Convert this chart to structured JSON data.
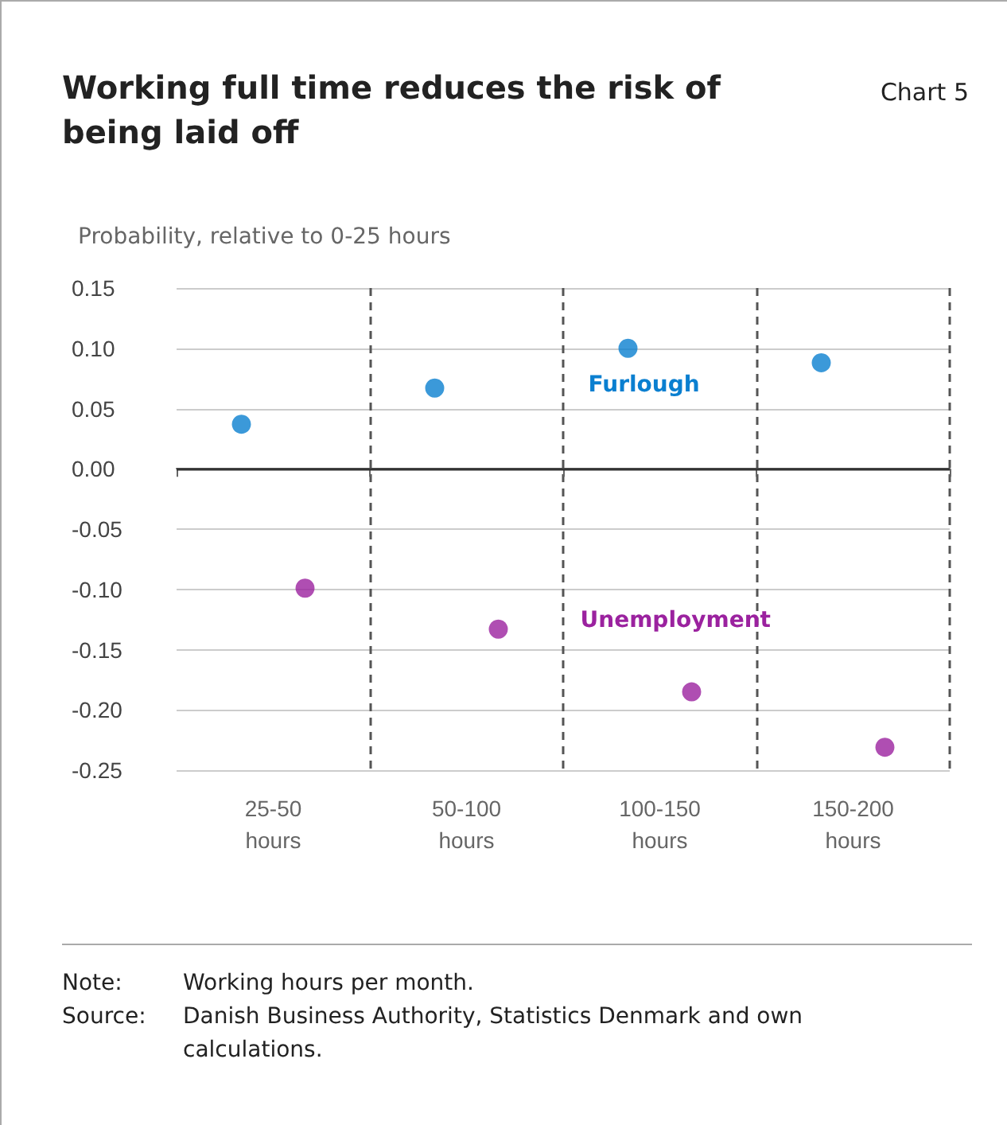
{
  "chart_data": {
    "type": "scatter",
    "title": "Working full time reduces the risk of being laid off",
    "ylabel": "Probability, relative to 0-25 hours",
    "annotations": [
      "Chart 5",
      "Note: Working hours per month.",
      "Source: Danish Business Authority, Statistics Denmark and own calculations."
    ],
    "categories": [
      "25-50 hours",
      "50-100 hours",
      "100-150 hours",
      "150-200 hours"
    ],
    "series": [
      {
        "name": "Furlough",
        "color": "#0a7fd0",
        "values": [
          0.037,
          0.067,
          0.1,
          0.088
        ]
      },
      {
        "name": "Unemployment",
        "color": "#9b229f",
        "values": [
          -0.099,
          -0.133,
          -0.185,
          -0.231
        ]
      }
    ],
    "ylim": [
      -0.25,
      0.15
    ],
    "yticks": [
      {
        "value": -0.25,
        "label": "-0.25"
      },
      {
        "value": -0.2,
        "label": "-0.20"
      },
      {
        "value": -0.15,
        "label": "-0.15"
      },
      {
        "value": -0.1,
        "label": "-0.10"
      },
      {
        "value": -0.05,
        "label": "-0.05"
      },
      {
        "value": 0,
        "label": "0.00"
      },
      {
        "value": 0.05,
        "label": "0.05"
      },
      {
        "value": 0.1,
        "label": "0.10"
      },
      {
        "value": 0.15,
        "label": "0.15"
      }
    ],
    "ref_lines": [
      {
        "axis": "y",
        "value": 0,
        "label": null,
        "color": "#333333"
      }
    ],
    "grid": true,
    "legend": false,
    "marker": "circle"
  }
}
